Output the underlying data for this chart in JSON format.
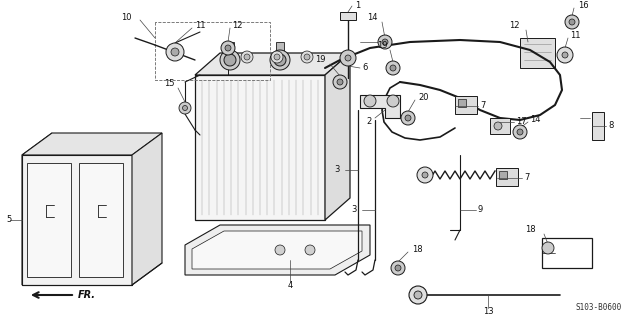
{
  "bg_color": "#ffffff",
  "line_color": "#1a1a1a",
  "fig_width": 6.3,
  "fig_height": 3.2,
  "dpi": 100,
  "diagram_code": "S103-B0600"
}
